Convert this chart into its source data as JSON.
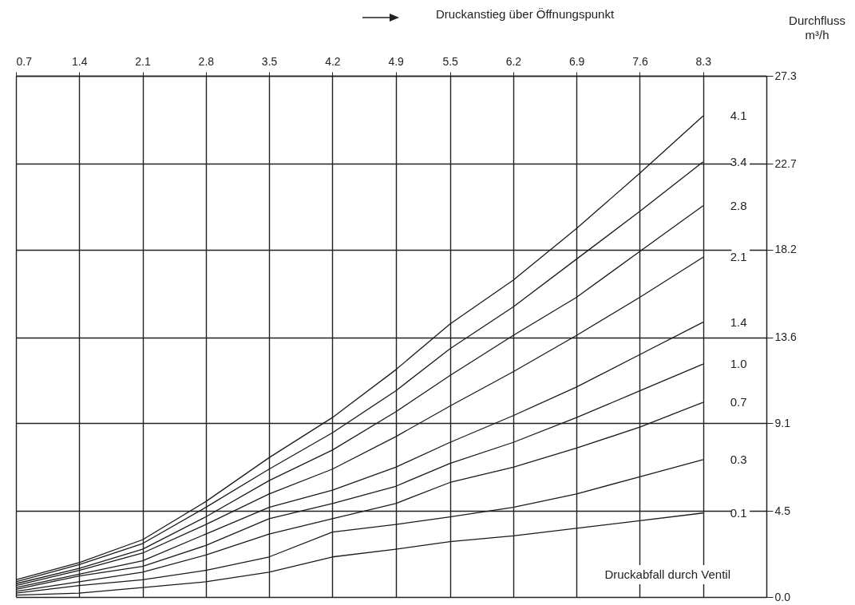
{
  "chart_data": {
    "type": "line",
    "xlabel": "Druckanstieg über Öffnungspunkt",
    "ylabel": "Durchfluss\nm³/h",
    "x": [
      0.7,
      1.4,
      2.1,
      2.8,
      3.5,
      4.2,
      4.9,
      5.5,
      6.2,
      6.9,
      7.6,
      8.3
    ],
    "xlim": [
      0.7,
      9.0
    ],
    "xticks": [
      0.7,
      1.4,
      2.1,
      2.8,
      3.5,
      4.2,
      4.9,
      5.5,
      6.2,
      6.9,
      7.6,
      8.3
    ],
    "ylim": [
      0,
      27.3
    ],
    "yticks": [
      {
        "value": 0,
        "label": "0.0"
      },
      4.5,
      9.1,
      13.6,
      18.2,
      22.7,
      27.3
    ],
    "grid": true,
    "series": [
      {
        "name": "4.1",
        "color": "#1a1a1a",
        "values": [
          0.9,
          1.8,
          3.0,
          5.0,
          7.3,
          9.4,
          11.9,
          14.3,
          16.6,
          19.3,
          22.2,
          25.2
        ]
      },
      {
        "name": "3.4",
        "color": "#1a1a1a",
        "values": [
          0.8,
          1.7,
          2.8,
          4.7,
          6.7,
          8.6,
          10.8,
          13.0,
          15.2,
          17.7,
          20.2,
          22.8
        ]
      },
      {
        "name": "2.8",
        "color": "#1a1a1a",
        "values": [
          0.7,
          1.5,
          2.5,
          4.2,
          6.1,
          7.7,
          9.7,
          11.6,
          13.7,
          15.7,
          18.1,
          20.5
        ]
      },
      {
        "name": "2.1",
        "color": "#1a1a1a",
        "values": [
          0.6,
          1.4,
          2.3,
          3.8,
          5.4,
          6.7,
          8.4,
          10.0,
          11.8,
          13.7,
          15.7,
          17.8
        ]
      },
      {
        "name": "1.4",
        "color": "#1a1a1a",
        "values": [
          0.5,
          1.2,
          1.9,
          3.3,
          4.7,
          5.6,
          6.8,
          8.1,
          9.5,
          11.0,
          12.7,
          14.4
        ]
      },
      {
        "name": "1.0",
        "color": "#1a1a1a",
        "values": [
          0.4,
          1.1,
          1.6,
          2.7,
          4.1,
          4.9,
          5.8,
          7.0,
          8.1,
          9.4,
          10.8,
          12.2
        ]
      },
      {
        "name": "0.7",
        "color": "#1a1a1a",
        "values": [
          0.3,
          0.8,
          1.3,
          2.2,
          3.3,
          4.1,
          4.9,
          6.0,
          6.8,
          7.8,
          8.9,
          10.2
        ]
      },
      {
        "name": "0.3",
        "color": "#1a1a1a",
        "values": [
          0.2,
          0.6,
          0.9,
          1.4,
          2.1,
          3.4,
          3.8,
          4.2,
          4.7,
          5.4,
          6.3,
          7.2
        ]
      },
      {
        "name": "0.1",
        "color": "#1a1a1a",
        "values": [
          0.1,
          0.2,
          0.5,
          0.8,
          1.3,
          2.1,
          2.5,
          2.9,
          3.2,
          3.6,
          4.0,
          4.4
        ]
      }
    ],
    "annotations": [
      "Druckabfall durch Ventil"
    ]
  }
}
